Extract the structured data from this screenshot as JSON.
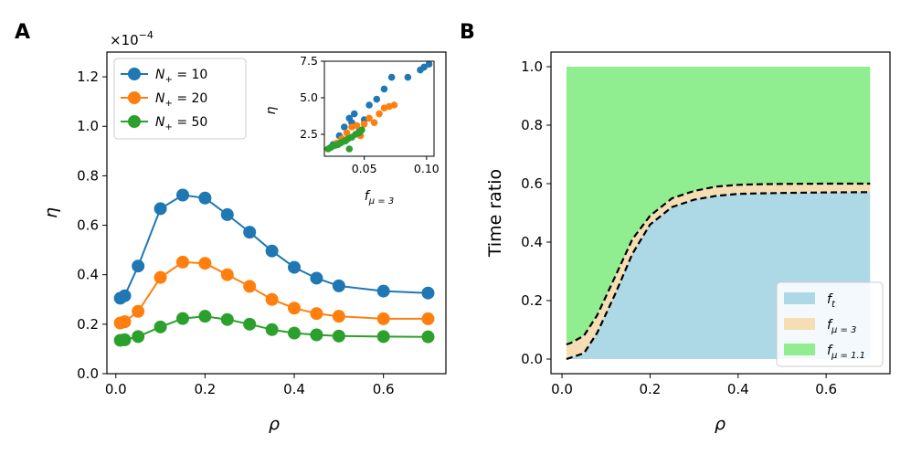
{
  "panels": {
    "a": "A",
    "b": "B"
  },
  "chart_data": [
    {
      "type": "line",
      "ylabel": "η",
      "xlabel": "ρ",
      "y_offset_label": "×10",
      "y_offset_exp": "−4",
      "xlim": [
        -0.02,
        0.74
      ],
      "ylim": [
        0,
        1.3
      ],
      "xticks": [
        "0.0",
        "0.2",
        "0.4",
        "0.6"
      ],
      "yticks": [
        "0.0",
        "0.2",
        "0.4",
        "0.6",
        "0.8",
        "1.0",
        "1.2"
      ],
      "legend_position": "upper left",
      "x": [
        0.01,
        0.02,
        0.05,
        0.1,
        0.15,
        0.2,
        0.25,
        0.3,
        0.35,
        0.4,
        0.45,
        0.5,
        0.6,
        0.7
      ],
      "series": [
        {
          "name": "N+ = 10",
          "label_main": "N",
          "label_sub": "+",
          "label_rest": " = 10",
          "color": "#1f77b4",
          "values": [
            0.305,
            0.315,
            0.435,
            0.667,
            0.722,
            0.71,
            0.643,
            0.572,
            0.496,
            0.43,
            0.386,
            0.355,
            0.334,
            0.326
          ]
        },
        {
          "name": "N+ = 20",
          "label_main": "N",
          "label_sub": "+",
          "label_rest": " = 20",
          "color": "#ff7f0e",
          "values": [
            0.205,
            0.21,
            0.252,
            0.389,
            0.451,
            0.446,
            0.4,
            0.353,
            0.3,
            0.265,
            0.243,
            0.232,
            0.222,
            0.222
          ]
        },
        {
          "name": "N+ = 50",
          "label_main": "N",
          "label_sub": "+",
          "label_rest": " = 50",
          "color": "#2ca02c",
          "values": [
            0.135,
            0.137,
            0.15,
            0.189,
            0.223,
            0.232,
            0.219,
            0.2,
            0.178,
            0.164,
            0.157,
            0.152,
            0.15,
            0.149
          ]
        }
      ]
    },
    {
      "type": "scatter",
      "inset": true,
      "ylabel": "η",
      "xlabel_main": "f",
      "xlabel_sub": "μ = 3",
      "xlim": [
        0.018,
        0.106
      ],
      "ylim": [
        1.0,
        7.5
      ],
      "xticks": [
        "0.05",
        "0.10"
      ],
      "yticks": [
        "2.5",
        "5.0",
        "7.5"
      ],
      "series": [
        {
          "color": "#1f77b4",
          "points": [
            [
              0.025,
              1.8
            ],
            [
              0.03,
              2.4
            ],
            [
              0.034,
              3.0
            ],
            [
              0.038,
              3.6
            ],
            [
              0.04,
              3.3
            ],
            [
              0.042,
              3.9
            ],
            [
              0.046,
              2.7
            ],
            [
              0.05,
              3.5
            ],
            [
              0.054,
              4.5
            ],
            [
              0.06,
              4.9
            ],
            [
              0.066,
              5.6
            ],
            [
              0.072,
              6.4
            ],
            [
              0.085,
              6.4
            ],
            [
              0.095,
              6.9
            ],
            [
              0.098,
              7.1
            ],
            [
              0.102,
              7.3
            ]
          ]
        },
        {
          "color": "#ff7f0e",
          "points": [
            [
              0.028,
              1.9
            ],
            [
              0.032,
              2.2
            ],
            [
              0.036,
              2.6
            ],
            [
              0.04,
              3.0
            ],
            [
              0.044,
              3.1
            ],
            [
              0.047,
              2.4
            ],
            [
              0.05,
              3.2
            ],
            [
              0.054,
              3.6
            ],
            [
              0.058,
              3.3
            ],
            [
              0.062,
              3.9
            ],
            [
              0.066,
              4.3
            ],
            [
              0.07,
              4.4
            ],
            [
              0.074,
              4.5
            ]
          ]
        },
        {
          "color": "#2ca02c",
          "points": [
            [
              0.021,
              1.5
            ],
            [
              0.023,
              1.6
            ],
            [
              0.025,
              1.7
            ],
            [
              0.027,
              1.75
            ],
            [
              0.029,
              1.8
            ],
            [
              0.031,
              1.9
            ],
            [
              0.033,
              2.0
            ],
            [
              0.035,
              2.05
            ],
            [
              0.037,
              2.2
            ],
            [
              0.038,
              1.5
            ],
            [
              0.04,
              2.3
            ],
            [
              0.043,
              2.5
            ],
            [
              0.046,
              2.6
            ],
            [
              0.048,
              2.8
            ]
          ]
        }
      ]
    },
    {
      "type": "area",
      "ylabel": "Time ratio",
      "xlabel": "ρ",
      "xlim": [
        -0.025,
        0.745
      ],
      "ylim": [
        -0.05,
        1.05
      ],
      "xticks": [
        "0.0",
        "0.2",
        "0.4",
        "0.6"
      ],
      "yticks": [
        "0.0",
        "0.2",
        "0.4",
        "0.6",
        "0.8",
        "1.0"
      ],
      "legend_position": "lower right",
      "x": [
        0.01,
        0.02,
        0.05,
        0.08,
        0.12,
        0.16,
        0.2,
        0.25,
        0.3,
        0.35,
        0.4,
        0.45,
        0.5,
        0.6,
        0.7
      ],
      "lower": [
        0.0,
        0.005,
        0.02,
        0.09,
        0.22,
        0.36,
        0.46,
        0.52,
        0.545,
        0.558,
        0.565,
        0.567,
        0.568,
        0.57,
        0.571
      ],
      "upper": [
        0.05,
        0.055,
        0.08,
        0.15,
        0.28,
        0.41,
        0.49,
        0.55,
        0.575,
        0.59,
        0.596,
        0.598,
        0.599,
        0.6,
        0.6
      ],
      "top": 1.0,
      "series": [
        {
          "name": "f_t",
          "label_main": "f",
          "label_sub": "t",
          "color": "#add8e6"
        },
        {
          "name": "f_μ=3",
          "label_main": "f",
          "label_sub": "μ = 3",
          "color": "#f5deb3"
        },
        {
          "name": "f_μ=1.1",
          "label_main": "f",
          "label_sub": "μ = 1.1",
          "color": "#90ee90"
        }
      ]
    }
  ]
}
